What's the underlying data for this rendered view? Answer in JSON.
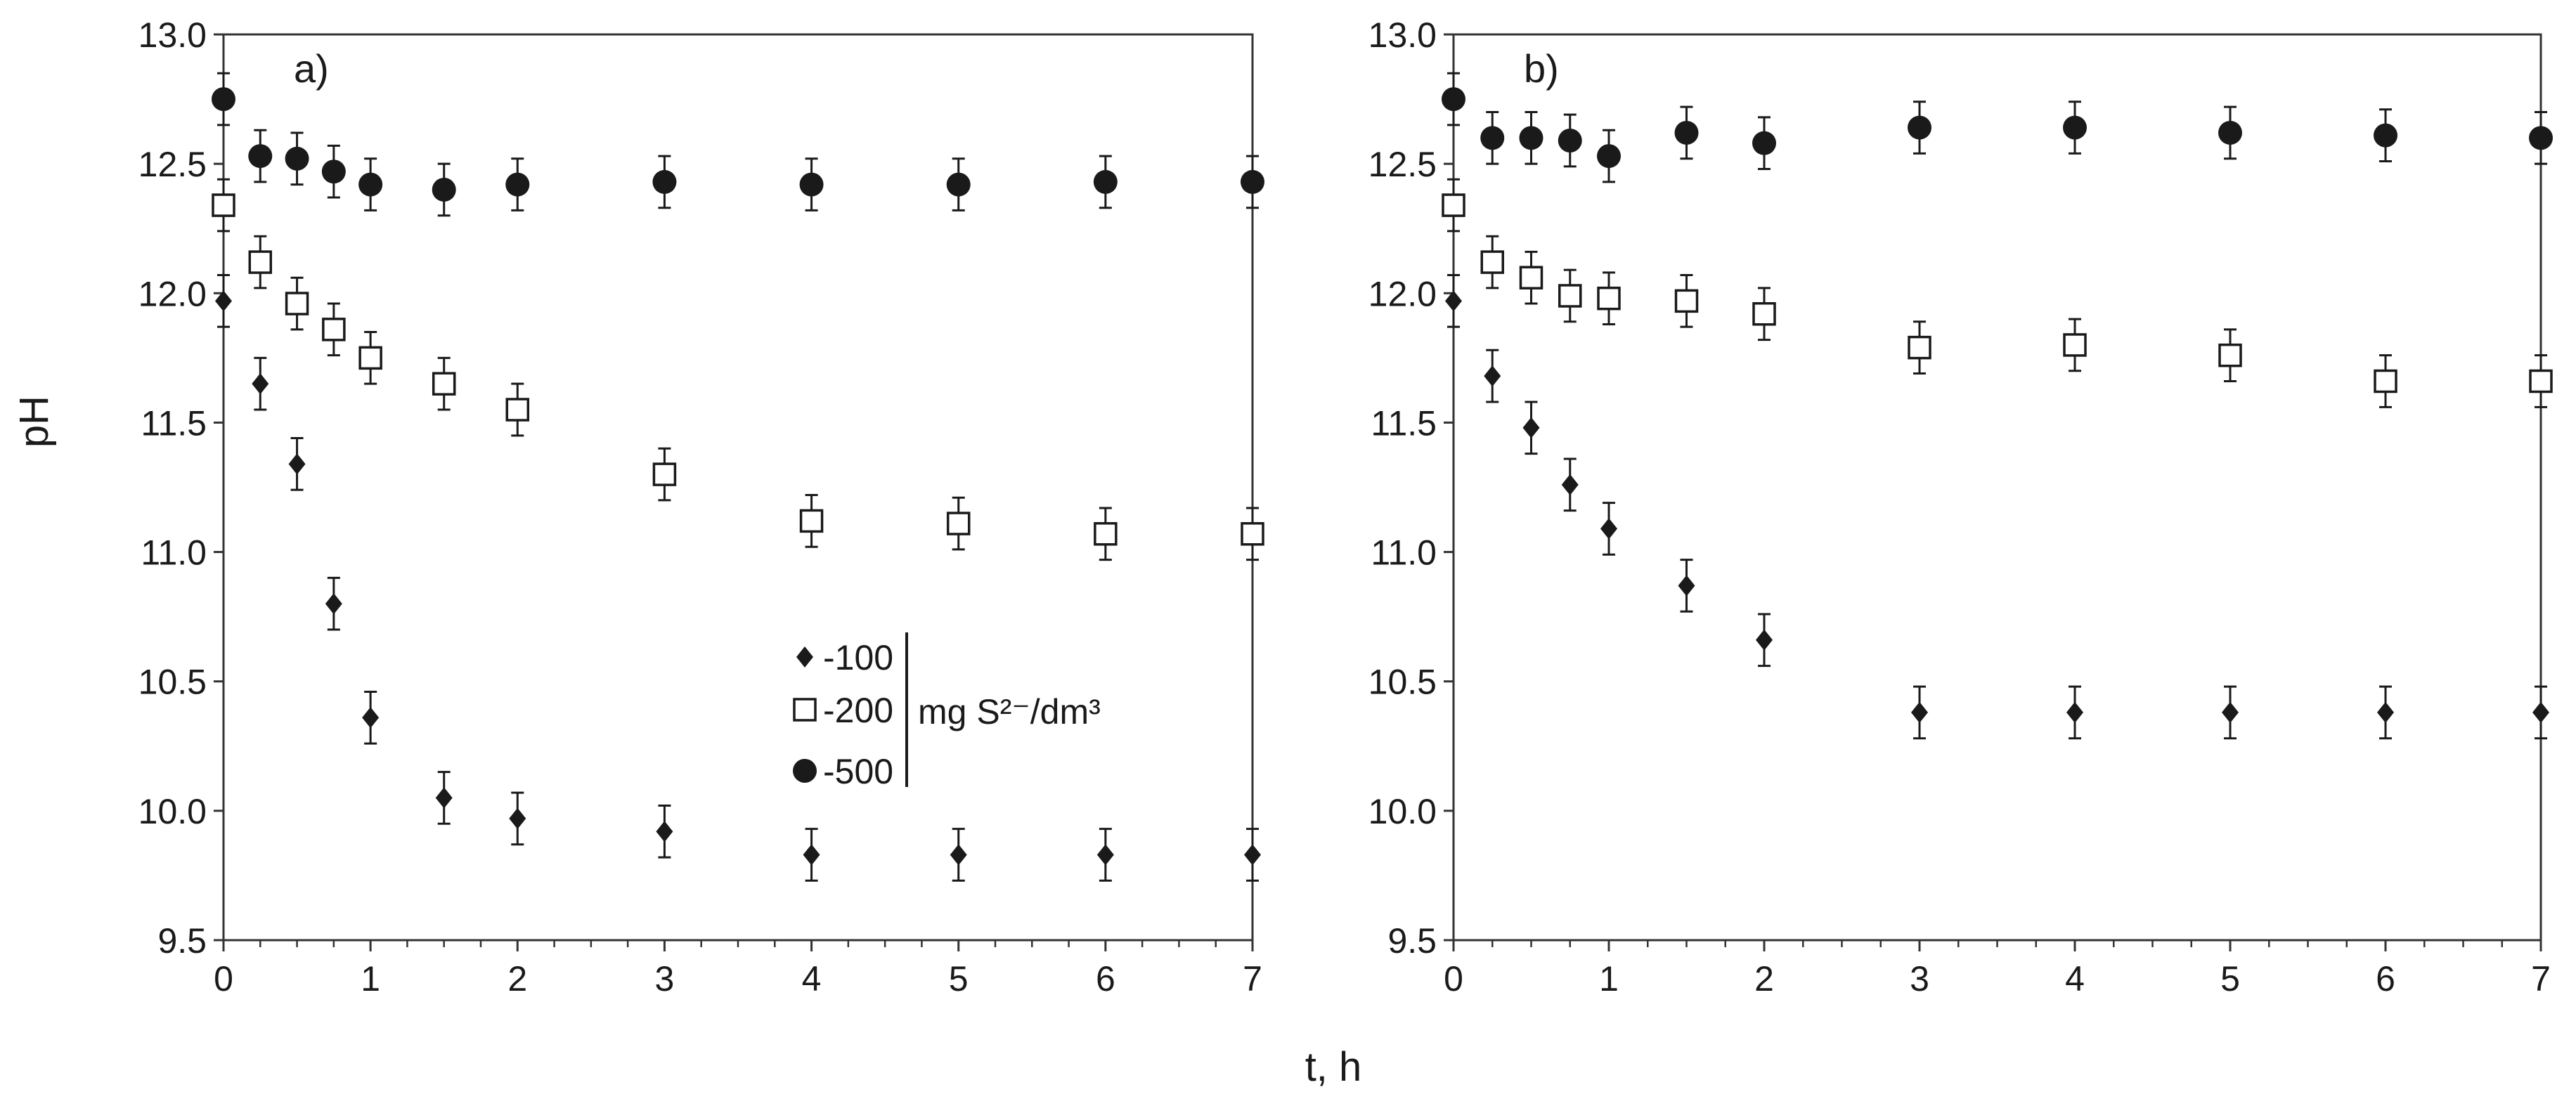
{
  "figure": {
    "xlabel": "t, h",
    "ylabel": "pH"
  },
  "legend": {
    "entries": [
      {
        "label": "-100",
        "marker": "diamond"
      },
      {
        "label": "-200",
        "marker": "square-open"
      },
      {
        "label": "-500",
        "marker": "circle"
      }
    ],
    "unit": "mg S²⁻/dm³",
    "placement": "panel a, center"
  },
  "colors": {
    "ink": "#1a1a1a",
    "background": "#ffffff"
  },
  "chart_data": [
    {
      "type": "scatter",
      "panel_label": "a)",
      "xlim": [
        0,
        7
      ],
      "ylim": [
        9.5,
        13.0
      ],
      "x_ticks": [
        0,
        1,
        2,
        3,
        4,
        5,
        6,
        7
      ],
      "y_ticks": [
        9.5,
        10.0,
        10.5,
        11.0,
        11.5,
        12.0,
        12.5,
        13.0
      ],
      "y_tick_labels": [
        "9.5",
        "10.0",
        "10.5",
        "11.0",
        "11.5",
        "12.0",
        "12.5",
        "13.0"
      ],
      "grid": false,
      "error_bar": 0.1,
      "x": [
        0,
        0.25,
        0.5,
        0.75,
        1,
        1.5,
        2,
        3,
        4,
        5,
        6,
        7
      ],
      "series": [
        {
          "name": "-100",
          "marker": "diamond",
          "values": [
            11.97,
            11.65,
            11.34,
            10.8,
            10.36,
            10.05,
            9.97,
            9.92,
            9.83,
            9.83,
            9.83,
            9.83
          ]
        },
        {
          "name": "-200",
          "marker": "square-open",
          "values": [
            12.34,
            12.12,
            11.96,
            11.86,
            11.75,
            11.65,
            11.55,
            11.3,
            11.12,
            11.11,
            11.07,
            11.07
          ]
        },
        {
          "name": "-500",
          "marker": "circle",
          "values": [
            12.75,
            12.53,
            12.52,
            12.47,
            12.42,
            12.4,
            12.42,
            12.43,
            12.42,
            12.42,
            12.43,
            12.43
          ]
        }
      ]
    },
    {
      "type": "scatter",
      "panel_label": "b)",
      "xlim": [
        0,
        7
      ],
      "ylim": [
        9.5,
        13.0
      ],
      "x_ticks": [
        0,
        1,
        2,
        3,
        4,
        5,
        6,
        7
      ],
      "y_ticks": [
        9.5,
        10.0,
        10.5,
        11.0,
        11.5,
        12.0,
        12.5,
        13.0
      ],
      "y_tick_labels": [
        "9.5",
        "10.0",
        "10.5",
        "11.0",
        "11.5",
        "12.0",
        "12.5",
        "13.0"
      ],
      "grid": false,
      "error_bar": 0.1,
      "x": [
        0,
        0.25,
        0.5,
        0.75,
        1,
        1.5,
        2,
        3,
        4,
        5,
        6,
        7
      ],
      "series": [
        {
          "name": "-100",
          "marker": "diamond",
          "values": [
            11.97,
            11.68,
            11.48,
            11.26,
            11.09,
            10.87,
            10.66,
            10.38,
            10.38,
            10.38,
            10.38,
            10.38
          ]
        },
        {
          "name": "-200",
          "marker": "square-open",
          "values": [
            12.34,
            12.12,
            12.06,
            11.99,
            11.98,
            11.97,
            11.92,
            11.79,
            11.8,
            11.76,
            11.66,
            11.66
          ]
        },
        {
          "name": "-500",
          "marker": "circle",
          "values": [
            12.75,
            12.6,
            12.6,
            12.59,
            12.53,
            12.62,
            12.58,
            12.64,
            12.64,
            12.62,
            12.61,
            12.6
          ]
        }
      ]
    }
  ]
}
